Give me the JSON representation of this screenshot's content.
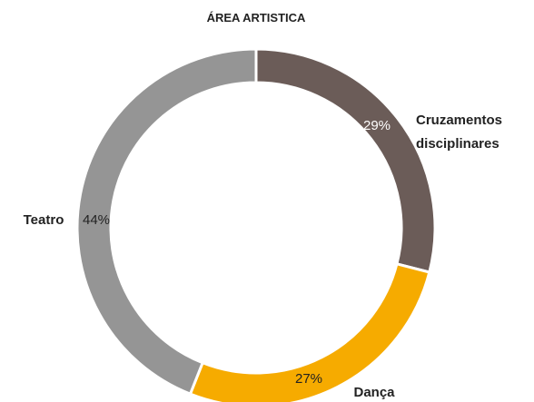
{
  "chart_data": {
    "type": "donut",
    "title": "ÁREA ARTISTICA",
    "categories": [
      "Cruzamentos disciplinares",
      "Dança",
      "Teatro"
    ],
    "values": [
      29,
      27,
      44
    ],
    "value_labels": [
      "29%",
      "27%",
      "44%"
    ],
    "colors": [
      "#6b5c58",
      "#f6ab00",
      "#959595"
    ]
  }
}
